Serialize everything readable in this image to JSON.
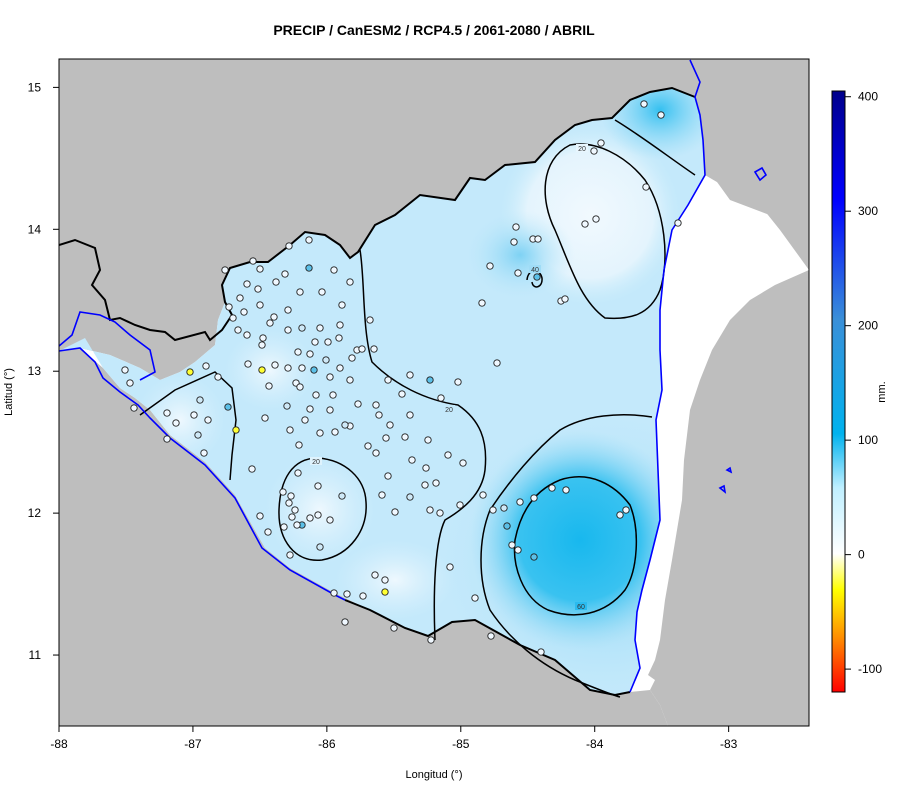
{
  "title": "PRECIP / CanESM2 / RCP4.5 / 2061-2080 / ABRIL",
  "map": {
    "x_axis_label": "Longitud (°)",
    "y_axis_label": "Latitud (°)",
    "x_ticks": [
      "-88",
      "-87",
      "-86",
      "-85",
      "-84",
      "-83"
    ],
    "y_ticks": [
      "15",
      "14",
      "13",
      "12",
      "11"
    ],
    "x_tick_values": [
      -88,
      -87,
      -86,
      -85,
      -84,
      -83
    ],
    "y_tick_values": [
      15,
      14,
      13,
      12,
      11
    ],
    "lon_range": [
      -88,
      -82.4
    ],
    "lat_range": [
      10.5,
      15.2
    ],
    "land_color": "#bebebe",
    "sea_color": "#ffffff",
    "border_color": "#000000",
    "coast_color": "#0000ff"
  },
  "contours": {
    "labels": [
      "20",
      "20",
      "20",
      "40",
      "60"
    ],
    "values": [
      20,
      20,
      20,
      40,
      60
    ]
  },
  "colorbar": {
    "unit": "mm.",
    "tick_labels": [
      "400",
      "300",
      "200",
      "100",
      "0",
      "-100"
    ],
    "tick_values": [
      400,
      300,
      200,
      100,
      0,
      -100
    ],
    "range": [
      -120,
      405
    ],
    "colors": {
      "max": "#00008b",
      "blue": "#0000ff",
      "cyan_mid": "#00b2ee",
      "light": "#bfefff",
      "zero": "#ffffff",
      "yellow": "#ffff00",
      "orange": "#ff8c00",
      "min": "#ff0000"
    }
  },
  "stations": {
    "marker_colors": {
      "white": "#f0f8ff",
      "light_blue": "#cfe9f7",
      "blue": "#5bc0e8",
      "yellow": "#ffff33"
    }
  }
}
